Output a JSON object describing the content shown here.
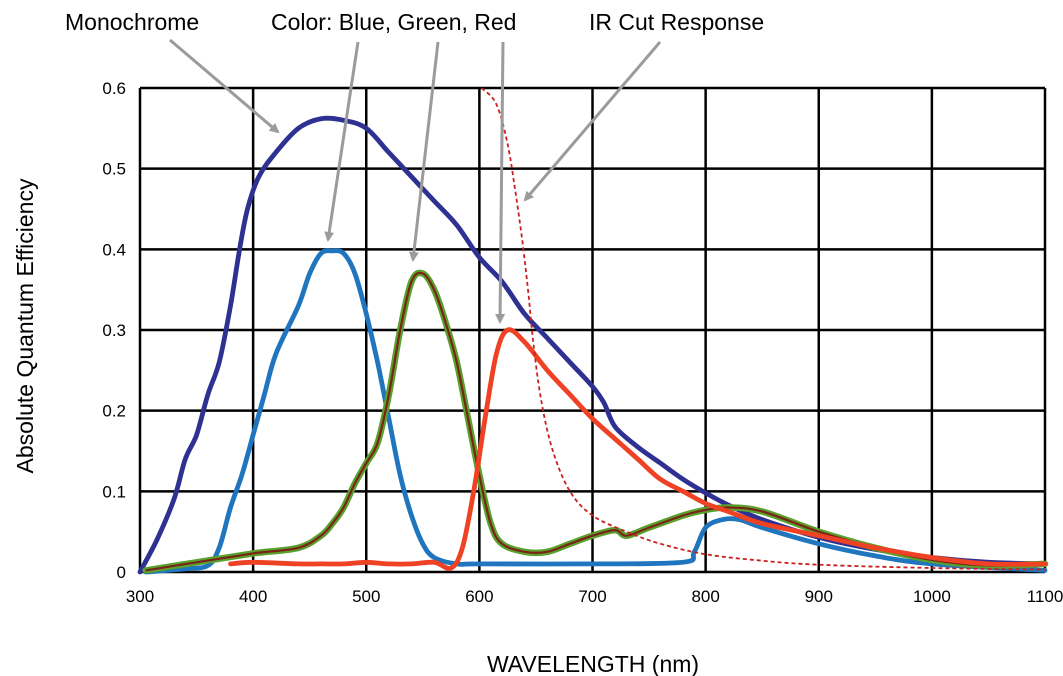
{
  "chart_data": {
    "type": "line",
    "title": "",
    "xlabel": "WAVELENGTH (nm)",
    "ylabel": "Absolute Quantum Efficiency",
    "xlim": [
      300,
      1100
    ],
    "ylim": [
      0,
      0.6
    ],
    "x_ticks": [
      "300",
      "400",
      "500",
      "600",
      "700",
      "800",
      "900",
      "1000",
      "1100"
    ],
    "y_ticks": [
      "0",
      "0.1",
      "0.2",
      "0.3",
      "0.4",
      "0.5",
      "0.6"
    ],
    "grid": true,
    "annotations": [
      {
        "text": "Monochrome"
      },
      {
        "text": "Color: Blue, Green, Red"
      },
      {
        "text": "IR Cut Response"
      }
    ],
    "series": [
      {
        "name": "Monochrome",
        "color": "#2e3192",
        "style": "solid",
        "points": [
          [
            300,
            0
          ],
          [
            315,
            0.04
          ],
          [
            330,
            0.09
          ],
          [
            340,
            0.14
          ],
          [
            350,
            0.17
          ],
          [
            360,
            0.22
          ],
          [
            370,
            0.26
          ],
          [
            380,
            0.33
          ],
          [
            388,
            0.4
          ],
          [
            395,
            0.45
          ],
          [
            405,
            0.49
          ],
          [
            420,
            0.52
          ],
          [
            440,
            0.55
          ],
          [
            460,
            0.562
          ],
          [
            480,
            0.56
          ],
          [
            500,
            0.55
          ],
          [
            520,
            0.52
          ],
          [
            540,
            0.49
          ],
          [
            560,
            0.46
          ],
          [
            580,
            0.43
          ],
          [
            600,
            0.39
          ],
          [
            620,
            0.36
          ],
          [
            640,
            0.32
          ],
          [
            660,
            0.29
          ],
          [
            680,
            0.26
          ],
          [
            700,
            0.23
          ],
          [
            710,
            0.21
          ],
          [
            720,
            0.18
          ],
          [
            740,
            0.155
          ],
          [
            760,
            0.135
          ],
          [
            780,
            0.115
          ],
          [
            800,
            0.098
          ],
          [
            820,
            0.083
          ],
          [
            850,
            0.065
          ],
          [
            900,
            0.043
          ],
          [
            950,
            0.028
          ],
          [
            1000,
            0.018
          ],
          [
            1050,
            0.012
          ],
          [
            1100,
            0.01
          ]
        ]
      },
      {
        "name": "Blue",
        "color": "#1f75be",
        "style": "solid",
        "points": [
          [
            305,
            0
          ],
          [
            340,
            0.004
          ],
          [
            360,
            0.008
          ],
          [
            370,
            0.03
          ],
          [
            380,
            0.08
          ],
          [
            390,
            0.12
          ],
          [
            400,
            0.17
          ],
          [
            410,
            0.22
          ],
          [
            420,
            0.27
          ],
          [
            440,
            0.33
          ],
          [
            450,
            0.37
          ],
          [
            460,
            0.395
          ],
          [
            470,
            0.398
          ],
          [
            480,
            0.395
          ],
          [
            490,
            0.37
          ],
          [
            500,
            0.32
          ],
          [
            510,
            0.26
          ],
          [
            520,
            0.19
          ],
          [
            530,
            0.12
          ],
          [
            540,
            0.07
          ],
          [
            550,
            0.035
          ],
          [
            560,
            0.018
          ],
          [
            580,
            0.01
          ],
          [
            600,
            0.01
          ],
          [
            700,
            0.01
          ],
          [
            780,
            0.012
          ],
          [
            790,
            0.025
          ],
          [
            800,
            0.055
          ],
          [
            815,
            0.065
          ],
          [
            830,
            0.065
          ],
          [
            850,
            0.055
          ],
          [
            900,
            0.035
          ],
          [
            950,
            0.02
          ],
          [
            1000,
            0.01
          ],
          [
            1100,
            0.002
          ]
        ]
      },
      {
        "name": "Green",
        "color": "#5aa02c",
        "style": "solid",
        "points": [
          [
            305,
            0.002
          ],
          [
            350,
            0.012
          ],
          [
            400,
            0.023
          ],
          [
            440,
            0.03
          ],
          [
            460,
            0.045
          ],
          [
            470,
            0.06
          ],
          [
            480,
            0.08
          ],
          [
            490,
            0.11
          ],
          [
            500,
            0.135
          ],
          [
            510,
            0.16
          ],
          [
            520,
            0.22
          ],
          [
            530,
            0.3
          ],
          [
            540,
            0.36
          ],
          [
            550,
            0.37
          ],
          [
            560,
            0.35
          ],
          [
            570,
            0.31
          ],
          [
            580,
            0.26
          ],
          [
            590,
            0.19
          ],
          [
            600,
            0.12
          ],
          [
            610,
            0.06
          ],
          [
            620,
            0.035
          ],
          [
            640,
            0.025
          ],
          [
            660,
            0.025
          ],
          [
            680,
            0.035
          ],
          [
            700,
            0.045
          ],
          [
            720,
            0.052
          ],
          [
            730,
            0.045
          ],
          [
            750,
            0.055
          ],
          [
            780,
            0.07
          ],
          [
            800,
            0.077
          ],
          [
            820,
            0.08
          ],
          [
            850,
            0.075
          ],
          [
            900,
            0.05
          ],
          [
            950,
            0.03
          ],
          [
            1000,
            0.015
          ],
          [
            1050,
            0.008
          ],
          [
            1100,
            0.01
          ]
        ]
      },
      {
        "name": "Red",
        "color": "#ef4123",
        "style": "solid",
        "points": [
          [
            380,
            0.01
          ],
          [
            400,
            0.012
          ],
          [
            440,
            0.01
          ],
          [
            460,
            0.01
          ],
          [
            480,
            0.01
          ],
          [
            500,
            0.012
          ],
          [
            520,
            0.01
          ],
          [
            540,
            0.01
          ],
          [
            560,
            0.012
          ],
          [
            575,
            0.005
          ],
          [
            585,
            0.03
          ],
          [
            595,
            0.1
          ],
          [
            605,
            0.19
          ],
          [
            615,
            0.27
          ],
          [
            625,
            0.3
          ],
          [
            640,
            0.285
          ],
          [
            660,
            0.25
          ],
          [
            680,
            0.22
          ],
          [
            700,
            0.19
          ],
          [
            720,
            0.165
          ],
          [
            740,
            0.14
          ],
          [
            760,
            0.115
          ],
          [
            780,
            0.1
          ],
          [
            800,
            0.085
          ],
          [
            820,
            0.075
          ],
          [
            850,
            0.06
          ],
          [
            900,
            0.045
          ],
          [
            950,
            0.03
          ],
          [
            1000,
            0.018
          ],
          [
            1050,
            0.01
          ],
          [
            1100,
            0.01
          ]
        ]
      },
      {
        "name": "IR Cut Response",
        "color": "#c9201f",
        "style": "dashed",
        "points": [
          [
            602,
            0.6
          ],
          [
            615,
            0.58
          ],
          [
            625,
            0.53
          ],
          [
            632,
            0.47
          ],
          [
            638,
            0.41
          ],
          [
            643,
            0.35
          ],
          [
            648,
            0.28
          ],
          [
            655,
            0.21
          ],
          [
            665,
            0.15
          ],
          [
            680,
            0.1
          ],
          [
            700,
            0.07
          ],
          [
            730,
            0.05
          ],
          [
            760,
            0.035
          ],
          [
            800,
            0.022
          ],
          [
            850,
            0.014
          ],
          [
            900,
            0.009
          ],
          [
            1000,
            0.005
          ],
          [
            1100,
            0.003
          ]
        ]
      }
    ]
  }
}
